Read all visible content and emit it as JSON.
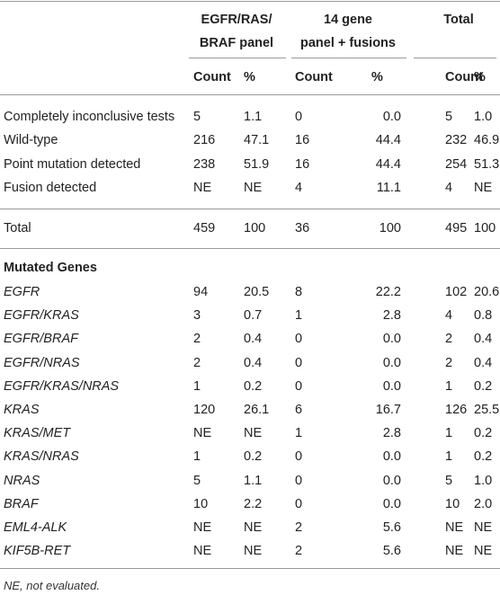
{
  "table": {
    "column_groups": [
      [
        "EGFR/RAS/",
        "BRAF panel"
      ],
      [
        "14 gene",
        "panel + fusions"
      ],
      [
        "Total"
      ]
    ],
    "subheaders": [
      "Count",
      "%",
      "Count",
      "%",
      "Count",
      "%"
    ],
    "rows": [
      [
        "Completely inconclusive tests",
        "5",
        "1.1",
        "0",
        "0.0",
        "5",
        "1.0"
      ],
      [
        "Wild-type",
        "216",
        "47.1",
        "16",
        "44.4",
        "232",
        "46.9"
      ],
      [
        "Point mutation detected",
        "238",
        "51.9",
        "16",
        "44.4",
        "254",
        "51.3"
      ],
      [
        "Fusion detected",
        "NE",
        "NE",
        "4",
        "11.1",
        "4",
        "NE"
      ]
    ],
    "total_row": [
      "Total",
      "459",
      "100",
      "36",
      "100",
      "495",
      "100"
    ],
    "section_title": "Mutated Genes",
    "gene_rows": [
      [
        "EGFR",
        "94",
        "20.5",
        "8",
        "22.2",
        "102",
        "20.6"
      ],
      [
        "EGFR/KRAS",
        "3",
        "0.7",
        "1",
        "2.8",
        "4",
        "0.8"
      ],
      [
        "EGFR/BRAF",
        "2",
        "0.4",
        "0",
        "0.0",
        "2",
        "0.4"
      ],
      [
        "EGFR/NRAS",
        "2",
        "0.4",
        "0",
        "0.0",
        "2",
        "0.4"
      ],
      [
        "EGFR/KRAS/NRAS",
        "1",
        "0.2",
        "0",
        "0.0",
        "1",
        "0.2"
      ],
      [
        "KRAS",
        "120",
        "26.1",
        "6",
        "16.7",
        "126",
        "25.5"
      ],
      [
        "KRAS/MET",
        "NE",
        "NE",
        "1",
        "2.8",
        "1",
        "0.2"
      ],
      [
        "KRAS/NRAS",
        "1",
        "0.2",
        "0",
        "0.0",
        "1",
        "0.2"
      ],
      [
        "NRAS",
        "5",
        "1.1",
        "0",
        "0.0",
        "5",
        "1.0"
      ],
      [
        "BRAF",
        "10",
        "2.2",
        "0",
        "0.0",
        "10",
        "2.0"
      ],
      [
        "EML4-ALK",
        "NE",
        "NE",
        "2",
        "5.6",
        "NE",
        "NE"
      ],
      [
        "KIF5B-RET",
        "NE",
        "NE",
        "2",
        "5.6",
        "NE",
        "NE"
      ]
    ],
    "footnote": "NE, not evaluated."
  }
}
